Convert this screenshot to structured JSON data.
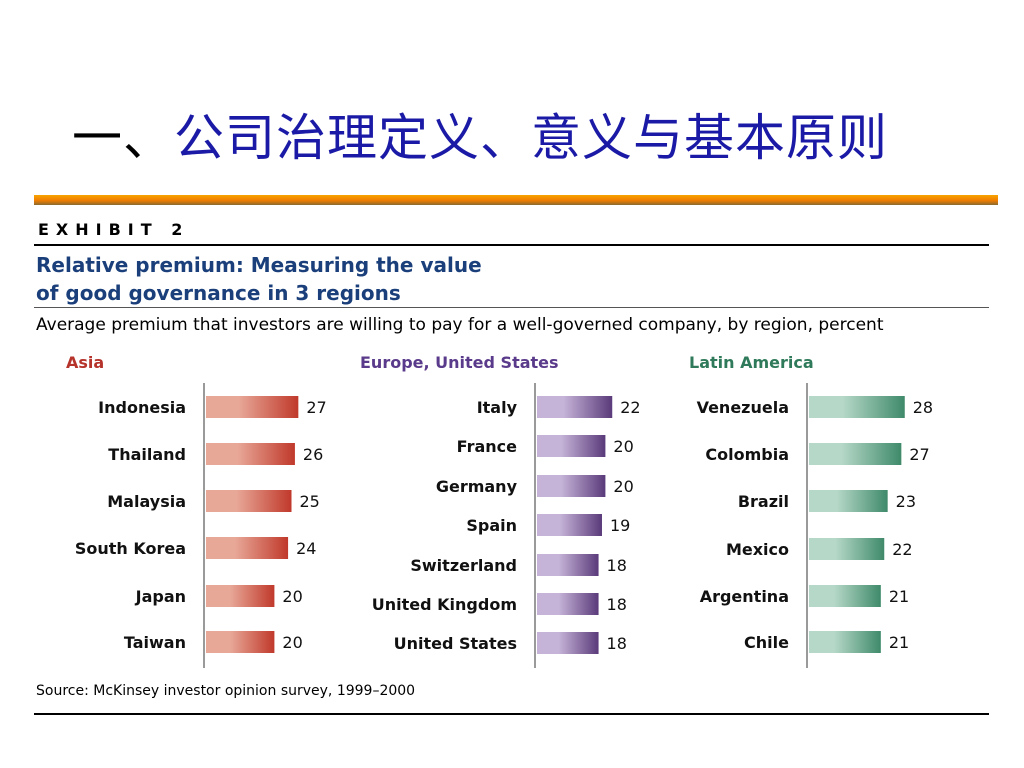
{
  "slide": {
    "title_prefix": "一、",
    "title_main": "公司治理定义、意义与基本原则"
  },
  "exhibit": {
    "label": "EXHIBIT 2",
    "headline_line1": "Relative premium: Measuring the value",
    "headline_line2": "of good governance in 3 regions",
    "subtitle": "Average premium that investors are willing to pay for a well-governed company, by region, percent",
    "source": "Source: McKinsey investor opinion survey, 1999–2000"
  },
  "colors": {
    "asia": "#c0392b",
    "asia_light": "#e8a898",
    "asia_header": "#b5332b",
    "europe": "#5a3a7a",
    "europe_light": "#c6b4d8",
    "europe_header": "#5a3a8a",
    "latam": "#3f8a6a",
    "latam_light": "#b6d8c8",
    "latam_header": "#2f7a5a"
  },
  "chart_data": [
    {
      "type": "bar",
      "title": "Asia",
      "categories": [
        "Indonesia",
        "Thailand",
        "Malaysia",
        "South Korea",
        "Japan",
        "Taiwan"
      ],
      "values": [
        27,
        26,
        25,
        24,
        20,
        20
      ],
      "xlabel": "",
      "ylabel": "",
      "ylim": [
        0,
        28
      ]
    },
    {
      "type": "bar",
      "title": "Europe, United States",
      "categories": [
        "Italy",
        "France",
        "Germany",
        "Spain",
        "Switzerland",
        "United Kingdom",
        "United States"
      ],
      "values": [
        22,
        20,
        20,
        19,
        18,
        18,
        18
      ],
      "xlabel": "",
      "ylabel": "",
      "ylim": [
        0,
        28
      ]
    },
    {
      "type": "bar",
      "title": "Latin America",
      "categories": [
        "Venezuela",
        "Colombia",
        "Brazil",
        "Mexico",
        "Argentina",
        "Chile"
      ],
      "values": [
        28,
        27,
        23,
        22,
        21,
        21
      ],
      "xlabel": "",
      "ylabel": "",
      "ylim": [
        0,
        28
      ]
    }
  ]
}
